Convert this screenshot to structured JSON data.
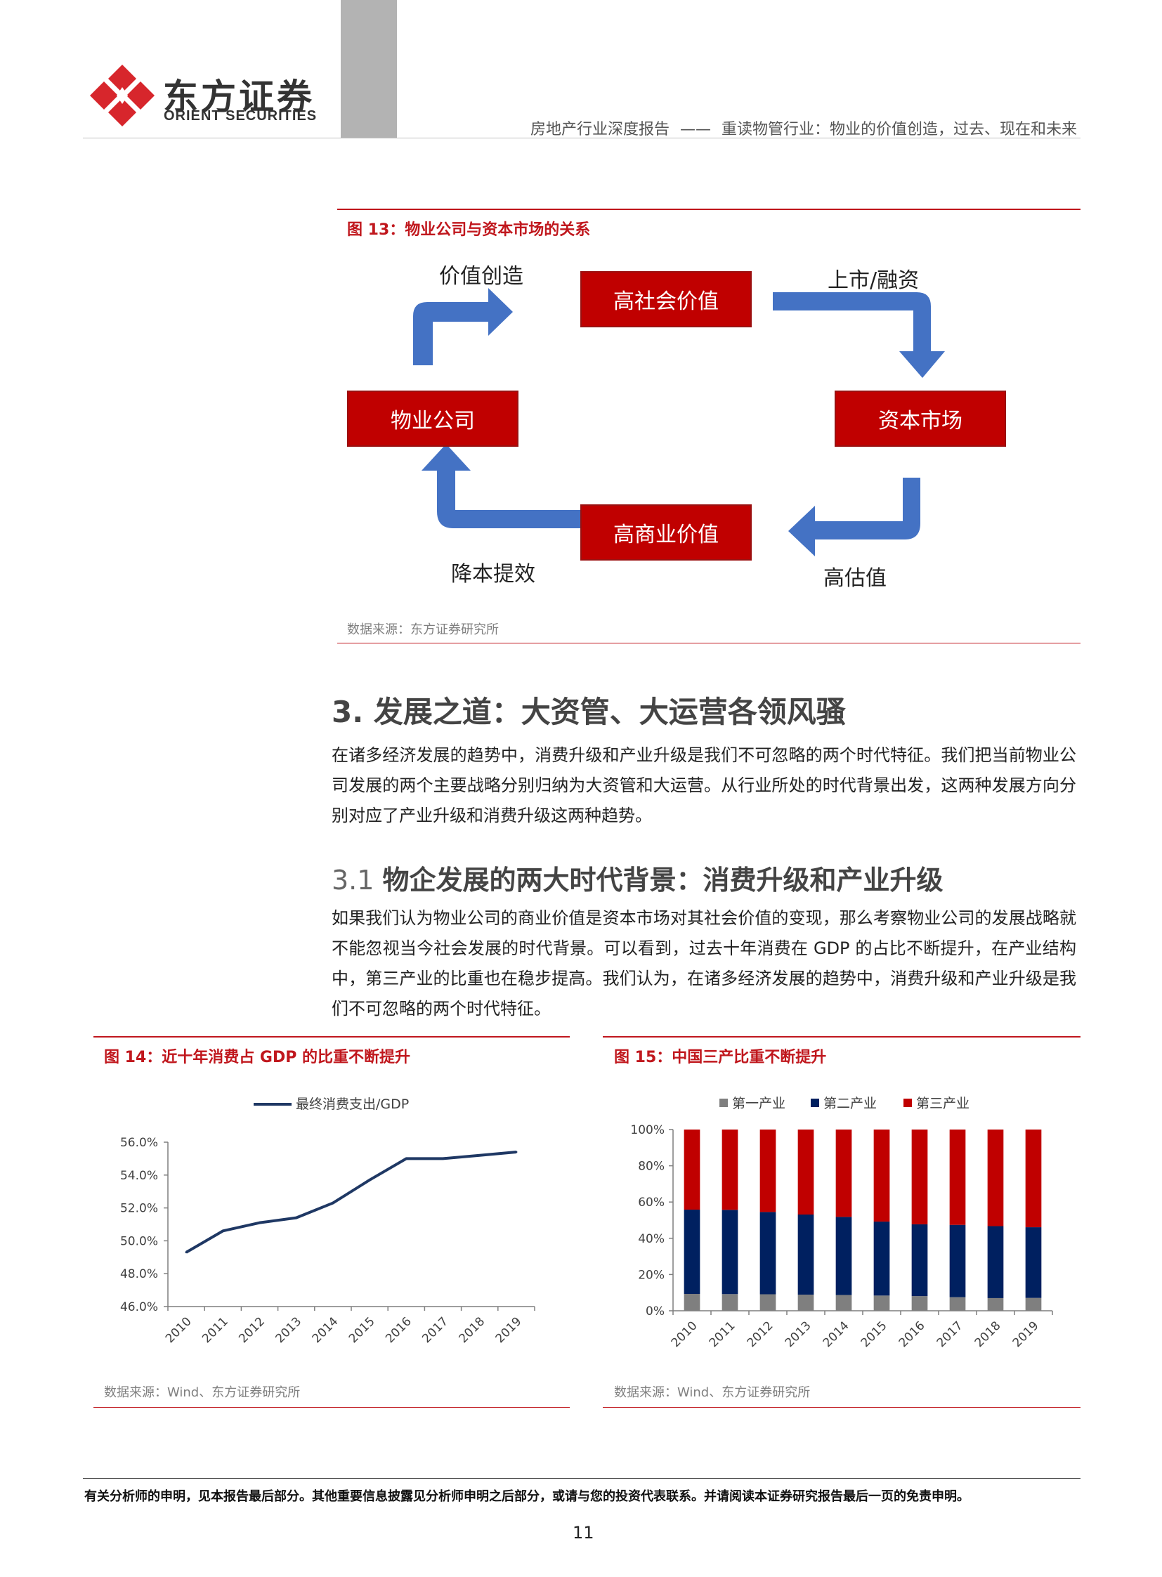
{
  "header": {
    "logo_cn": "东方证券",
    "logo_en": "ORIENT SECURITIES",
    "report_type": "房地产行业深度报告",
    "separator": "——",
    "report_subtitle": "重读物管行业：物业的价值创造，过去、现在和未来"
  },
  "fig13": {
    "title": "图 13：物业公司与资本市场的关系",
    "boxes": {
      "top": "高社会价值",
      "left": "物业公司",
      "right": "资本市场",
      "bottom": "高商业价值"
    },
    "labels": {
      "top_left": "价值创造",
      "top_right": "上市/融资",
      "bottom_left": "降本提效",
      "bottom_right": "高估值"
    },
    "source": "数据来源：东方证券研究所",
    "colors": {
      "box": "#c00000",
      "arrow": "#4472c4"
    }
  },
  "section3": {
    "heading": "3. 发展之道：大资管、大运营各领风骚",
    "para": "在诸多经济发展的趋势中，消费升级和产业升级是我们不可忽略的两个时代特征。我们把当前物业公司发展的两个主要战略分别归纳为大资管和大运营。从行业所处的时代背景出发，这两种发展方向分别对应了产业升级和消费升级这两种趋势。"
  },
  "section31": {
    "num": "3.1",
    "heading": "物企发展的两大时代背景：消费升级和产业升级",
    "para": "如果我们认为物业公司的商业价值是资本市场对其社会价值的变现，那么考察物业公司的发展战略就不能忽视当今社会发展的时代背景。可以看到，过去十年消费在 GDP 的占比不断提升，在产业结构中，第三产业的比重也在稳步提高。我们认为，在诸多经济发展的趋势中，消费升级和产业升级是我们不可忽略的两个时代特征。"
  },
  "fig14": {
    "title": "图 14：近十年消费占 GDP 的比重不断提升",
    "source": "数据来源：Wind、东方证券研究所",
    "ytick_labels": [
      "56.0%",
      "54.0%",
      "52.0%",
      "50.0%",
      "48.0%",
      "46.0%"
    ]
  },
  "fig15": {
    "title": "图 15：中国三产比重不断提升",
    "source": "数据来源：Wind、东方证券研究所",
    "ytick_labels": [
      "100%",
      "80%",
      "60%",
      "40%",
      "20%",
      "0%"
    ]
  },
  "chart_data": [
    {
      "type": "line",
      "x": [
        "2010",
        "2011",
        "2012",
        "2013",
        "2014",
        "2015",
        "2016",
        "2017",
        "2018",
        "2019"
      ],
      "series": [
        {
          "name": "最终消费支出/GDP",
          "color": "#1f3864",
          "values": [
            49.3,
            50.6,
            51.1,
            51.4,
            52.3,
            53.7,
            55.0,
            55.0,
            55.2,
            55.4
          ]
        }
      ],
      "ylim": [
        46,
        56
      ],
      "yticks": [
        46,
        48,
        50,
        52,
        54,
        56
      ],
      "ytick_format": "percent_1dp",
      "legend": "top-center",
      "grid": false
    },
    {
      "type": "bar",
      "stacked": true,
      "categories": [
        "2010",
        "2011",
        "2012",
        "2013",
        "2014",
        "2015",
        "2016",
        "2017",
        "2018",
        "2019"
      ],
      "series": [
        {
          "name": "第一产业",
          "color": "#7f7f7f",
          "values": [
            9.3,
            9.2,
            9.1,
            8.9,
            8.7,
            8.4,
            8.1,
            7.5,
            7.0,
            7.1
          ]
        },
        {
          "name": "第二产业",
          "color": "#002060",
          "values": [
            46.5,
            46.5,
            45.4,
            44.2,
            43.1,
            40.8,
            39.6,
            39.9,
            39.7,
            39.0
          ]
        },
        {
          "name": "第三产业",
          "color": "#c00000",
          "values": [
            44.2,
            44.3,
            45.5,
            46.9,
            48.2,
            50.8,
            52.3,
            52.6,
            53.3,
            53.9
          ]
        }
      ],
      "ylim": [
        0,
        100
      ],
      "yticks": [
        0,
        20,
        40,
        60,
        80,
        100
      ],
      "legend": "top-center",
      "grid": false
    }
  ],
  "footer": {
    "disclaimer": "有关分析师的申明，见本报告最后部分。其他重要信息披露见分析师申明之后部分，或请与您的投资代表联系。并请阅读本证券研究报告最后一页的免责申明。",
    "page_number": "11"
  }
}
